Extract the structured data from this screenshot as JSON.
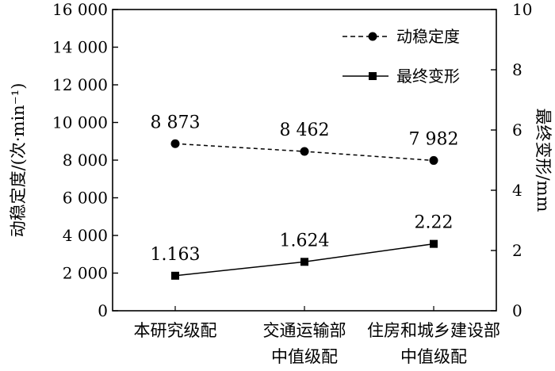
{
  "chart_data": {
    "type": "line",
    "categories": [
      [
        "本研究级配"
      ],
      [
        "交通运输部",
        "中值级配"
      ],
      [
        "住房和城乡建设部",
        "中值级配"
      ]
    ],
    "series": [
      {
        "name": "动稳定度",
        "axis": "left",
        "values": [
          8873,
          8462,
          7982
        ],
        "labels": [
          "8 873",
          "8 462",
          "7 982"
        ],
        "style": "dashed",
        "marker": "circle"
      },
      {
        "name": "最终变形",
        "axis": "right",
        "values": [
          1.163,
          1.624,
          2.22
        ],
        "labels": [
          "1.163",
          "1.624",
          "2.22"
        ],
        "style": "solid",
        "marker": "square"
      }
    ],
    "y_left": {
      "label": "动稳定度/(次·min⁻¹)",
      "ylim": [
        0,
        16000
      ],
      "ticks": [
        0,
        2000,
        4000,
        6000,
        8000,
        10000,
        12000,
        14000,
        16000
      ],
      "tick_labels": [
        "0",
        "2 000",
        "4 000",
        "6 000",
        "8 000",
        "10 000",
        "12 000",
        "14 000",
        "16 000"
      ]
    },
    "y_right": {
      "label": "最终变形/mm",
      "ylim": [
        0,
        10
      ],
      "ticks": [
        0,
        2,
        4,
        6,
        8,
        10
      ],
      "tick_labels": [
        "0",
        "2",
        "4",
        "6",
        "8",
        "10"
      ]
    },
    "legend_position": "top-right",
    "grid": false,
    "colors": {
      "line": "#000000",
      "background": "#ffffff"
    }
  }
}
